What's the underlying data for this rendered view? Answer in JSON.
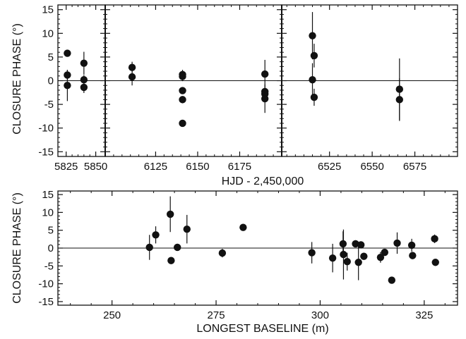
{
  "colors": {
    "ink": "#111111",
    "background": "#ffffff"
  },
  "chart_data": [
    {
      "type": "scatter",
      "ylabel": "CLOSURE PHASE (°)",
      "xlabel": "HJD - 2,450,000",
      "ylim": [
        -16,
        16
      ],
      "yticks": [
        -15,
        -10,
        -5,
        0,
        5,
        10,
        15
      ],
      "zero_line": true,
      "panels": [
        {
          "xlim": [
            5818,
            5858
          ],
          "xticks": [
            5825,
            5850
          ],
          "x_minor_ticks": [
            5830,
            5835,
            5840,
            5845
          ],
          "points": [
            {
              "x": 5826,
              "y": 5.8,
              "err": 0.6
            },
            {
              "x": 5826,
              "y": 1.2,
              "err": 1.0
            },
            {
              "x": 5826,
              "y": -1.0,
              "err": 3.3
            },
            {
              "x": 5840,
              "y": 3.7,
              "err": 2.4
            },
            {
              "x": 5840,
              "y": 0.2,
              "err": 1.0
            },
            {
              "x": 5840,
              "y": -1.4,
              "err": 1.2
            }
          ]
        },
        {
          "xlim": [
            6095,
            6200
          ],
          "xticks": [
            6125,
            6150,
            6175
          ],
          "x_minor_ticks": [
            6100,
            6105,
            6110,
            6115,
            6120,
            6130,
            6135,
            6140,
            6145,
            6155,
            6160,
            6165,
            6170,
            6180,
            6185,
            6190,
            6195
          ],
          "points": [
            {
              "x": 6111,
              "y": 2.8,
              "err": 1.2
            },
            {
              "x": 6111,
              "y": 0.8,
              "err": 1.8
            },
            {
              "x": 6141,
              "y": 1.3,
              "err": 1.0
            },
            {
              "x": 6141,
              "y": 0.9,
              "err": 1.0
            },
            {
              "x": 6141,
              "y": -2.1,
              "err": 0.6
            },
            {
              "x": 6141,
              "y": -4.0,
              "err": 0.6
            },
            {
              "x": 6141,
              "y": -9.0,
              "err": 0.6
            },
            {
              "x": 6190,
              "y": 1.4,
              "err": 3.0
            },
            {
              "x": 6190,
              "y": -2.3,
              "err": 0.8
            },
            {
              "x": 6190,
              "y": -2.8,
              "err": 1.0
            },
            {
              "x": 6190,
              "y": -3.8,
              "err": 3.0
            }
          ]
        },
        {
          "xlim": [
            6497,
            6600
          ],
          "xticks": [
            6525,
            6550,
            6575
          ],
          "x_minor_ticks": [
            6500,
            6505,
            6510,
            6515,
            6520,
            6530,
            6535,
            6540,
            6545,
            6555,
            6560,
            6565,
            6570,
            6580,
            6585,
            6590,
            6595
          ],
          "points": [
            {
              "x": 6515,
              "y": 9.5,
              "err": 5.0
            },
            {
              "x": 6516,
              "y": 5.3,
              "err": 2.5
            },
            {
              "x": 6515,
              "y": 0.2,
              "err": 3.5
            },
            {
              "x": 6516,
              "y": -3.5,
              "err": 1.8
            },
            {
              "x": 6566,
              "y": -1.8,
              "err": 6.5
            },
            {
              "x": 6566,
              "y": -4.0,
              "err": 4.5
            }
          ]
        }
      ]
    },
    {
      "type": "scatter",
      "ylabel": "CLOSURE PHASE (°)",
      "xlabel": "LONGEST BASELINE (m)",
      "xlim": [
        237,
        333
      ],
      "xticks": [
        250,
        275,
        300,
        325
      ],
      "x_minor_ticks": [
        240,
        245,
        255,
        260,
        265,
        270,
        280,
        285,
        290,
        295,
        305,
        310,
        315,
        320,
        330
      ],
      "ylim": [
        -16,
        16
      ],
      "yticks": [
        -15,
        -10,
        -5,
        0,
        5,
        10,
        15
      ],
      "zero_line": true,
      "points": [
        {
          "x": 259,
          "y": 0.2,
          "err": 3.5
        },
        {
          "x": 260.5,
          "y": 3.7,
          "err": 2.4
        },
        {
          "x": 264,
          "y": 9.5,
          "err": 5.0
        },
        {
          "x": 264.2,
          "y": -3.5,
          "err": 1.0
        },
        {
          "x": 265.7,
          "y": 0.2,
          "err": 1.0
        },
        {
          "x": 268,
          "y": 5.3,
          "err": 4.0
        },
        {
          "x": 276.5,
          "y": -1.4,
          "err": 1.2
        },
        {
          "x": 281.5,
          "y": 5.8,
          "err": 0.6
        },
        {
          "x": 298,
          "y": -1.3,
          "err": 3.0
        },
        {
          "x": 303,
          "y": -2.8,
          "err": 4.0
        },
        {
          "x": 305.5,
          "y": 1.2,
          "err": 3.5
        },
        {
          "x": 305.6,
          "y": -1.8,
          "err": 7.0
        },
        {
          "x": 306.5,
          "y": -3.8,
          "err": 2.5
        },
        {
          "x": 308.5,
          "y": 1.2,
          "err": 1.0
        },
        {
          "x": 309.2,
          "y": -4.0,
          "err": 5.0
        },
        {
          "x": 309.8,
          "y": 0.9,
          "err": 1.0
        },
        {
          "x": 310.5,
          "y": -2.3,
          "err": 1.0
        },
        {
          "x": 314.5,
          "y": -2.6,
          "err": 1.5
        },
        {
          "x": 315.5,
          "y": -1.2,
          "err": 1.0
        },
        {
          "x": 317.2,
          "y": -9.0,
          "err": 0.6
        },
        {
          "x": 318.5,
          "y": 1.4,
          "err": 3.0
        },
        {
          "x": 322,
          "y": 0.8,
          "err": 1.8
        },
        {
          "x": 322.2,
          "y": -2.1,
          "err": 0.6
        },
        {
          "x": 327.5,
          "y": 2.6,
          "err": 1.2
        },
        {
          "x": 327.7,
          "y": -4.0,
          "err": 0.6
        }
      ]
    }
  ]
}
